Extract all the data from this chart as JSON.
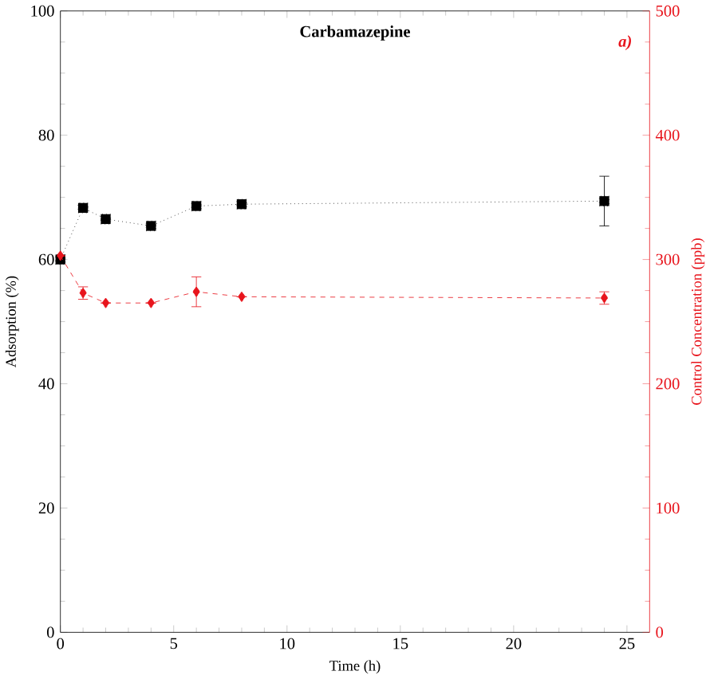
{
  "chart_data": {
    "type": "line",
    "title": "Carbamazepine",
    "xlabel": "Time (h)",
    "ylabel": "Adsorption (%)",
    "y2label": "Control Concentration (ppb)",
    "annotations": [
      "a)"
    ],
    "xlim": [
      0,
      26
    ],
    "xticks": [
      0,
      5,
      10,
      15,
      20,
      25
    ],
    "ylim": [
      0,
      100
    ],
    "yticks": [
      0,
      20,
      40,
      60,
      80,
      100
    ],
    "y2lim": [
      0,
      500
    ],
    "y2ticks": [
      0,
      100,
      200,
      300,
      400,
      500
    ],
    "grid": false,
    "series": [
      {
        "color": "#000000",
        "x": [
          0,
          1,
          2,
          4,
          6,
          8,
          24
        ],
        "values": [
          60,
          68.3,
          66.5,
          65.4,
          68.6,
          68.9,
          69.4
        ],
        "errors": [
          null,
          null,
          null,
          null,
          null,
          null,
          4
        ],
        "marker": "square",
        "line_style": "dotted"
      },
      {
        "color": "#e8141c",
        "axis": "y2",
        "x": [
          0,
          1,
          2,
          4,
          6,
          8,
          24
        ],
        "values": [
          303,
          273,
          265,
          265,
          274,
          270,
          269
        ],
        "errors": [
          null,
          5,
          null,
          null,
          12,
          null,
          5
        ],
        "marker": "diamond",
        "line_style": "dashed"
      }
    ]
  }
}
